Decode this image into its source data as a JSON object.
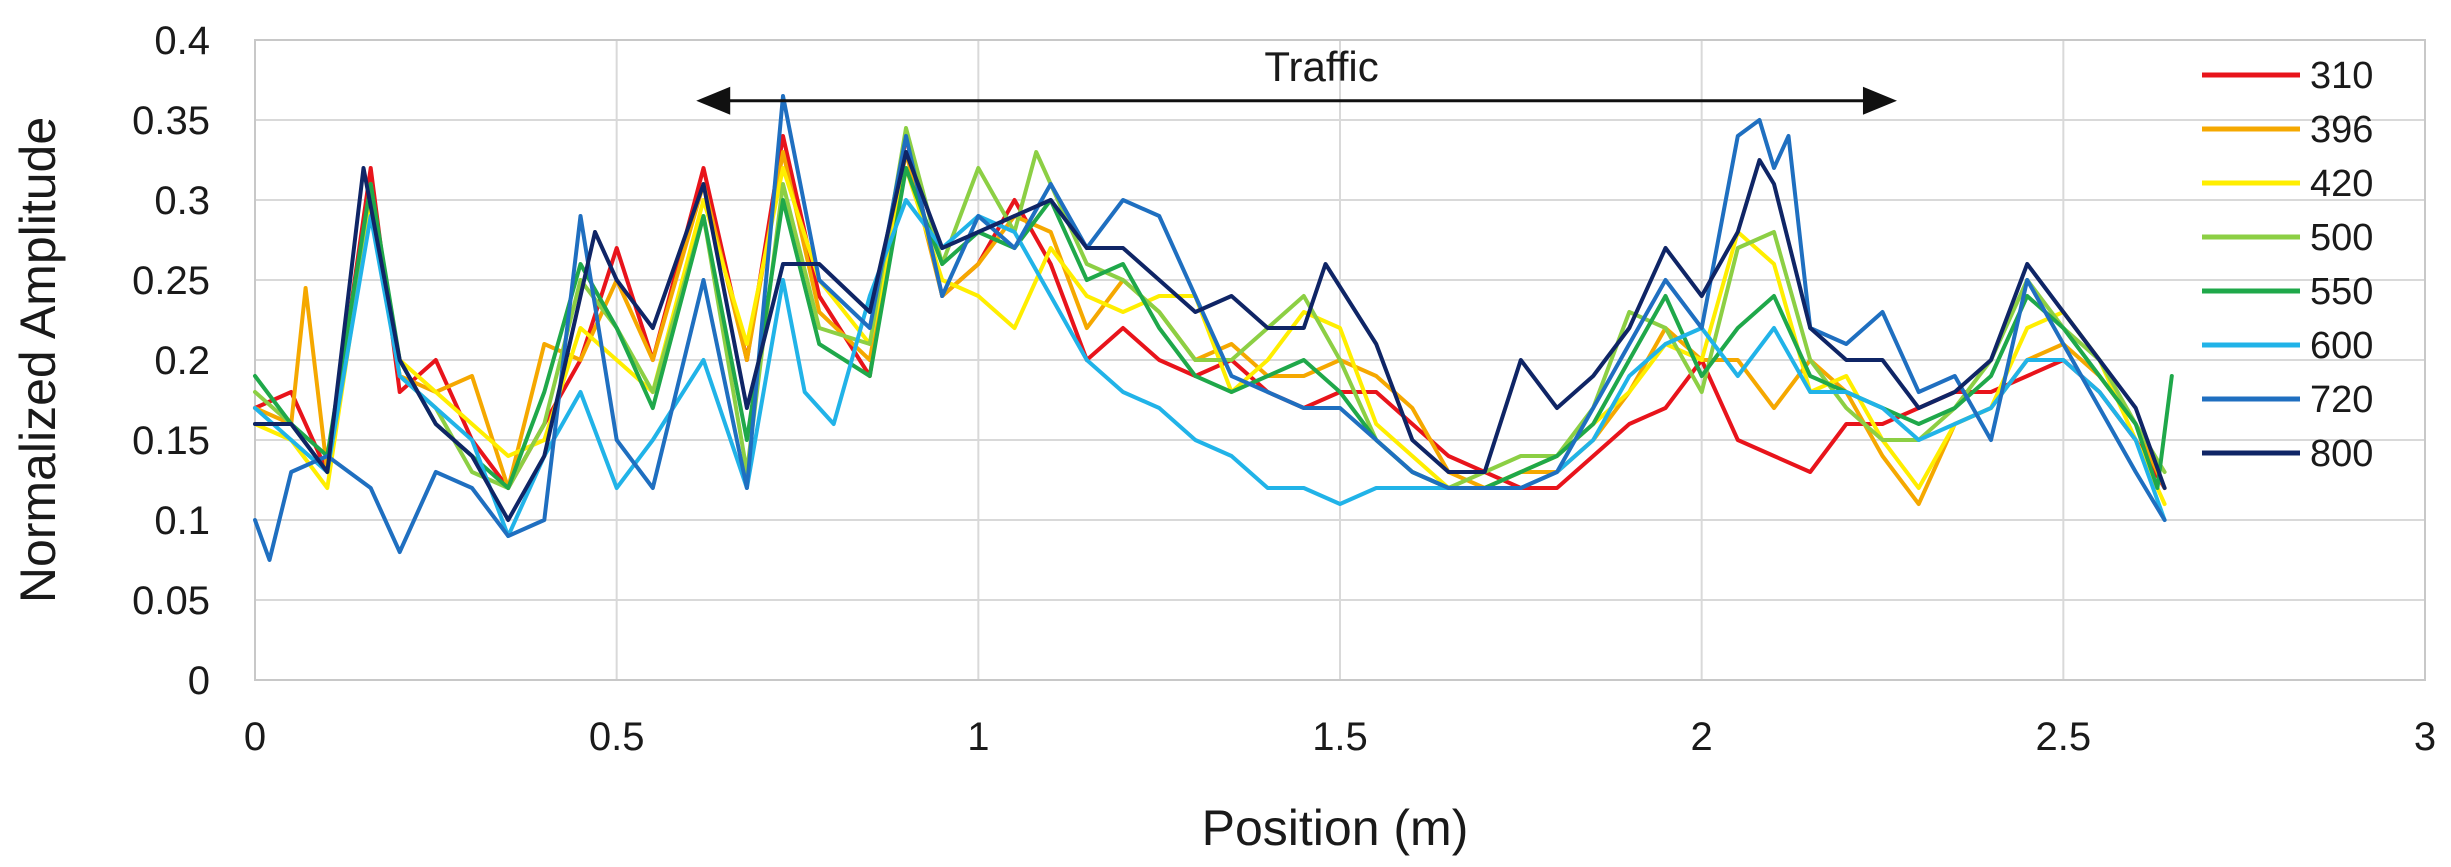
{
  "chart_data": {
    "type": "line",
    "xlabel": "Position (m)",
    "ylabel": "Normalized Amplitude",
    "xlim": [
      0,
      3
    ],
    "ylim": [
      0,
      0.4
    ],
    "x_ticks": [
      "0",
      "0.5",
      "1",
      "1.5",
      "2",
      "2.5",
      "3"
    ],
    "y_ticks": [
      "0",
      "0.05",
      "0.1",
      "0.15",
      "0.2",
      "0.25",
      "0.3",
      "0.35",
      "0.4"
    ],
    "grid": true,
    "legend_position": "right",
    "annotation": {
      "text": "Traffic",
      "x_start": 0.61,
      "x_end": 2.27,
      "y": 0.362
    },
    "series": [
      {
        "name": "310",
        "color": "#e8141b",
        "x": [
          0,
          0.05,
          0.1,
          0.16,
          0.2,
          0.25,
          0.3,
          0.35,
          0.4,
          0.45,
          0.5,
          0.55,
          0.62,
          0.68,
          0.73,
          0.78,
          0.85,
          0.9,
          0.95,
          1.0,
          1.05,
          1.1,
          1.15,
          1.2,
          1.25,
          1.3,
          1.35,
          1.4,
          1.45,
          1.5,
          1.55,
          1.6,
          1.65,
          1.7,
          1.75,
          1.8,
          1.85,
          1.9,
          1.95,
          2.0,
          2.05,
          2.1,
          2.15,
          2.2,
          2.25,
          2.3,
          2.35,
          2.4,
          2.45,
          2.5,
          2.55,
          2.6,
          2.64
        ],
        "values": [
          0.17,
          0.18,
          0.13,
          0.32,
          0.18,
          0.2,
          0.15,
          0.12,
          0.16,
          0.2,
          0.27,
          0.2,
          0.32,
          0.2,
          0.34,
          0.24,
          0.19,
          0.34,
          0.24,
          0.26,
          0.3,
          0.26,
          0.2,
          0.22,
          0.2,
          0.19,
          0.2,
          0.18,
          0.17,
          0.18,
          0.18,
          0.16,
          0.14,
          0.13,
          0.12,
          0.12,
          0.14,
          0.16,
          0.17,
          0.2,
          0.15,
          0.14,
          0.13,
          0.16,
          0.16,
          0.17,
          0.18,
          0.18,
          0.19,
          0.2,
          0.18,
          0.15,
          0.12
        ]
      },
      {
        "name": "396",
        "color": "#f5a800",
        "x": [
          0,
          0.05,
          0.07,
          0.1,
          0.16,
          0.2,
          0.25,
          0.3,
          0.35,
          0.4,
          0.45,
          0.5,
          0.55,
          0.62,
          0.68,
          0.73,
          0.78,
          0.85,
          0.9,
          0.95,
          1.0,
          1.05,
          1.1,
          1.15,
          1.2,
          1.25,
          1.3,
          1.35,
          1.4,
          1.45,
          1.5,
          1.55,
          1.6,
          1.65,
          1.7,
          1.75,
          1.8,
          1.85,
          1.9,
          1.95,
          2.0,
          2.05,
          2.1,
          2.15,
          2.2,
          2.25,
          2.3,
          2.35,
          2.4,
          2.45,
          2.5,
          2.55,
          2.6,
          2.64
        ],
        "values": [
          0.17,
          0.16,
          0.245,
          0.13,
          0.3,
          0.19,
          0.18,
          0.19,
          0.12,
          0.21,
          0.2,
          0.25,
          0.2,
          0.31,
          0.2,
          0.33,
          0.23,
          0.2,
          0.33,
          0.24,
          0.26,
          0.29,
          0.28,
          0.22,
          0.25,
          0.23,
          0.2,
          0.21,
          0.19,
          0.19,
          0.2,
          0.19,
          0.17,
          0.13,
          0.12,
          0.13,
          0.13,
          0.15,
          0.18,
          0.22,
          0.2,
          0.2,
          0.17,
          0.2,
          0.18,
          0.14,
          0.11,
          0.16,
          0.17,
          0.2,
          0.21,
          0.19,
          0.16,
          0.12
        ]
      },
      {
        "name": "420",
        "color": "#ffee00",
        "x": [
          0,
          0.05,
          0.1,
          0.16,
          0.2,
          0.25,
          0.3,
          0.35,
          0.4,
          0.45,
          0.5,
          0.55,
          0.62,
          0.68,
          0.73,
          0.78,
          0.85,
          0.9,
          0.95,
          1.0,
          1.05,
          1.1,
          1.15,
          1.2,
          1.25,
          1.3,
          1.35,
          1.4,
          1.45,
          1.5,
          1.55,
          1.6,
          1.65,
          1.7,
          1.75,
          1.8,
          1.85,
          1.9,
          1.95,
          2.0,
          2.05,
          2.1,
          2.15,
          2.2,
          2.25,
          2.3,
          2.35,
          2.4,
          2.45,
          2.5,
          2.55,
          2.6,
          2.64
        ],
        "values": [
          0.16,
          0.15,
          0.12,
          0.3,
          0.2,
          0.18,
          0.16,
          0.14,
          0.15,
          0.22,
          0.2,
          0.18,
          0.3,
          0.21,
          0.32,
          0.25,
          0.21,
          0.32,
          0.25,
          0.24,
          0.22,
          0.27,
          0.24,
          0.23,
          0.24,
          0.24,
          0.18,
          0.2,
          0.23,
          0.22,
          0.16,
          0.14,
          0.12,
          0.12,
          0.13,
          0.14,
          0.16,
          0.18,
          0.21,
          0.2,
          0.28,
          0.26,
          0.18,
          0.19,
          0.15,
          0.12,
          0.16,
          0.17,
          0.22,
          0.23,
          0.2,
          0.15,
          0.11
        ]
      },
      {
        "name": "500",
        "color": "#8ccf44",
        "x": [
          0,
          0.05,
          0.1,
          0.16,
          0.2,
          0.25,
          0.3,
          0.35,
          0.4,
          0.45,
          0.5,
          0.55,
          0.62,
          0.68,
          0.73,
          0.78,
          0.85,
          0.9,
          0.95,
          1.0,
          1.05,
          1.08,
          1.15,
          1.2,
          1.25,
          1.3,
          1.35,
          1.4,
          1.45,
          1.5,
          1.55,
          1.6,
          1.65,
          1.7,
          1.75,
          1.8,
          1.85,
          1.9,
          1.95,
          2.0,
          2.05,
          2.1,
          2.15,
          2.2,
          2.25,
          2.3,
          2.35,
          2.4,
          2.45,
          2.5,
          2.55,
          2.6,
          2.64
        ],
        "values": [
          0.18,
          0.16,
          0.13,
          0.31,
          0.19,
          0.17,
          0.13,
          0.12,
          0.16,
          0.25,
          0.22,
          0.18,
          0.29,
          0.13,
          0.31,
          0.22,
          0.21,
          0.345,
          0.26,
          0.32,
          0.28,
          0.33,
          0.26,
          0.25,
          0.23,
          0.2,
          0.2,
          0.22,
          0.24,
          0.2,
          0.15,
          0.13,
          0.12,
          0.13,
          0.14,
          0.14,
          0.17,
          0.23,
          0.22,
          0.18,
          0.27,
          0.28,
          0.2,
          0.17,
          0.15,
          0.15,
          0.17,
          0.2,
          0.25,
          0.22,
          0.2,
          0.16,
          0.13
        ]
      },
      {
        "name": "550",
        "color": "#1fa84a",
        "x": [
          0,
          0.05,
          0.1,
          0.16,
          0.2,
          0.25,
          0.3,
          0.35,
          0.4,
          0.45,
          0.5,
          0.55,
          0.62,
          0.68,
          0.73,
          0.78,
          0.85,
          0.9,
          0.95,
          1.0,
          1.05,
          1.1,
          1.15,
          1.2,
          1.25,
          1.3,
          1.35,
          1.4,
          1.45,
          1.5,
          1.55,
          1.6,
          1.65,
          1.7,
          1.75,
          1.8,
          1.85,
          1.9,
          1.95,
          2.0,
          2.05,
          2.1,
          2.15,
          2.2,
          2.25,
          2.3,
          2.35,
          2.4,
          2.45,
          2.5,
          2.55,
          2.6,
          2.63,
          2.65
        ],
        "values": [
          0.19,
          0.16,
          0.14,
          0.31,
          0.2,
          0.16,
          0.14,
          0.12,
          0.18,
          0.26,
          0.22,
          0.17,
          0.29,
          0.15,
          0.3,
          0.21,
          0.19,
          0.32,
          0.26,
          0.28,
          0.27,
          0.3,
          0.25,
          0.26,
          0.22,
          0.19,
          0.18,
          0.19,
          0.2,
          0.18,
          0.15,
          0.13,
          0.12,
          0.12,
          0.13,
          0.14,
          0.16,
          0.2,
          0.24,
          0.19,
          0.22,
          0.24,
          0.19,
          0.18,
          0.17,
          0.16,
          0.17,
          0.19,
          0.24,
          0.22,
          0.19,
          0.16,
          0.12,
          0.19
        ]
      },
      {
        "name": "600",
        "color": "#21b3e8",
        "x": [
          0,
          0.05,
          0.1,
          0.16,
          0.2,
          0.25,
          0.3,
          0.35,
          0.4,
          0.45,
          0.5,
          0.55,
          0.62,
          0.68,
          0.73,
          0.76,
          0.8,
          0.85,
          0.9,
          0.95,
          1.0,
          1.05,
          1.1,
          1.15,
          1.2,
          1.25,
          1.3,
          1.35,
          1.4,
          1.45,
          1.5,
          1.55,
          1.6,
          1.65,
          1.7,
          1.75,
          1.8,
          1.85,
          1.9,
          1.95,
          2.0,
          2.05,
          2.1,
          2.15,
          2.2,
          2.25,
          2.3,
          2.35,
          2.4,
          2.45,
          2.5,
          2.55,
          2.6,
          2.64
        ],
        "values": [
          0.17,
          0.15,
          0.13,
          0.29,
          0.19,
          0.17,
          0.15,
          0.09,
          0.14,
          0.18,
          0.12,
          0.15,
          0.2,
          0.12,
          0.25,
          0.18,
          0.16,
          0.24,
          0.3,
          0.27,
          0.29,
          0.28,
          0.24,
          0.2,
          0.18,
          0.17,
          0.15,
          0.14,
          0.12,
          0.12,
          0.11,
          0.12,
          0.12,
          0.12,
          0.12,
          0.12,
          0.13,
          0.15,
          0.19,
          0.21,
          0.22,
          0.19,
          0.22,
          0.18,
          0.18,
          0.17,
          0.15,
          0.16,
          0.17,
          0.2,
          0.2,
          0.18,
          0.15,
          0.1
        ]
      },
      {
        "name": "720",
        "color": "#1f6fc0",
        "x": [
          0,
          0.02,
          0.05,
          0.1,
          0.16,
          0.2,
          0.25,
          0.3,
          0.35,
          0.4,
          0.45,
          0.5,
          0.55,
          0.62,
          0.68,
          0.73,
          0.78,
          0.85,
          0.9,
          0.95,
          1.0,
          1.05,
          1.1,
          1.15,
          1.2,
          1.25,
          1.3,
          1.35,
          1.4,
          1.45,
          1.5,
          1.55,
          1.6,
          1.65,
          1.7,
          1.75,
          1.8,
          1.85,
          1.9,
          1.95,
          2.0,
          2.05,
          2.08,
          2.1,
          2.12,
          2.15,
          2.2,
          2.25,
          2.3,
          2.35,
          2.4,
          2.45,
          2.5,
          2.55,
          2.6,
          2.64
        ],
        "values": [
          0.1,
          0.075,
          0.13,
          0.14,
          0.12,
          0.08,
          0.13,
          0.12,
          0.09,
          0.1,
          0.29,
          0.15,
          0.12,
          0.25,
          0.12,
          0.365,
          0.25,
          0.22,
          0.34,
          0.24,
          0.29,
          0.27,
          0.31,
          0.27,
          0.3,
          0.29,
          0.24,
          0.19,
          0.18,
          0.17,
          0.17,
          0.15,
          0.13,
          0.12,
          0.12,
          0.12,
          0.13,
          0.17,
          0.21,
          0.25,
          0.22,
          0.34,
          0.35,
          0.32,
          0.34,
          0.22,
          0.21,
          0.23,
          0.18,
          0.19,
          0.15,
          0.25,
          0.21,
          0.17,
          0.13,
          0.1
        ]
      },
      {
        "name": "800",
        "color": "#0f2566",
        "x": [
          0,
          0.05,
          0.1,
          0.15,
          0.2,
          0.25,
          0.3,
          0.35,
          0.4,
          0.47,
          0.5,
          0.55,
          0.62,
          0.68,
          0.73,
          0.78,
          0.85,
          0.9,
          0.95,
          1.0,
          1.05,
          1.1,
          1.15,
          1.2,
          1.25,
          1.3,
          1.35,
          1.4,
          1.45,
          1.48,
          1.55,
          1.6,
          1.65,
          1.7,
          1.75,
          1.8,
          1.85,
          1.9,
          1.95,
          2.0,
          2.05,
          2.08,
          2.1,
          2.15,
          2.2,
          2.25,
          2.3,
          2.35,
          2.4,
          2.45,
          2.5,
          2.55,
          2.6,
          2.64
        ],
        "values": [
          0.16,
          0.16,
          0.13,
          0.32,
          0.2,
          0.16,
          0.14,
          0.1,
          0.14,
          0.28,
          0.25,
          0.22,
          0.31,
          0.17,
          0.26,
          0.26,
          0.23,
          0.33,
          0.27,
          0.28,
          0.29,
          0.3,
          0.27,
          0.27,
          0.25,
          0.23,
          0.24,
          0.22,
          0.22,
          0.26,
          0.21,
          0.15,
          0.13,
          0.13,
          0.2,
          0.17,
          0.19,
          0.22,
          0.27,
          0.24,
          0.28,
          0.325,
          0.31,
          0.22,
          0.2,
          0.2,
          0.17,
          0.18,
          0.2,
          0.26,
          0.23,
          0.2,
          0.17,
          0.12
        ]
      }
    ]
  }
}
